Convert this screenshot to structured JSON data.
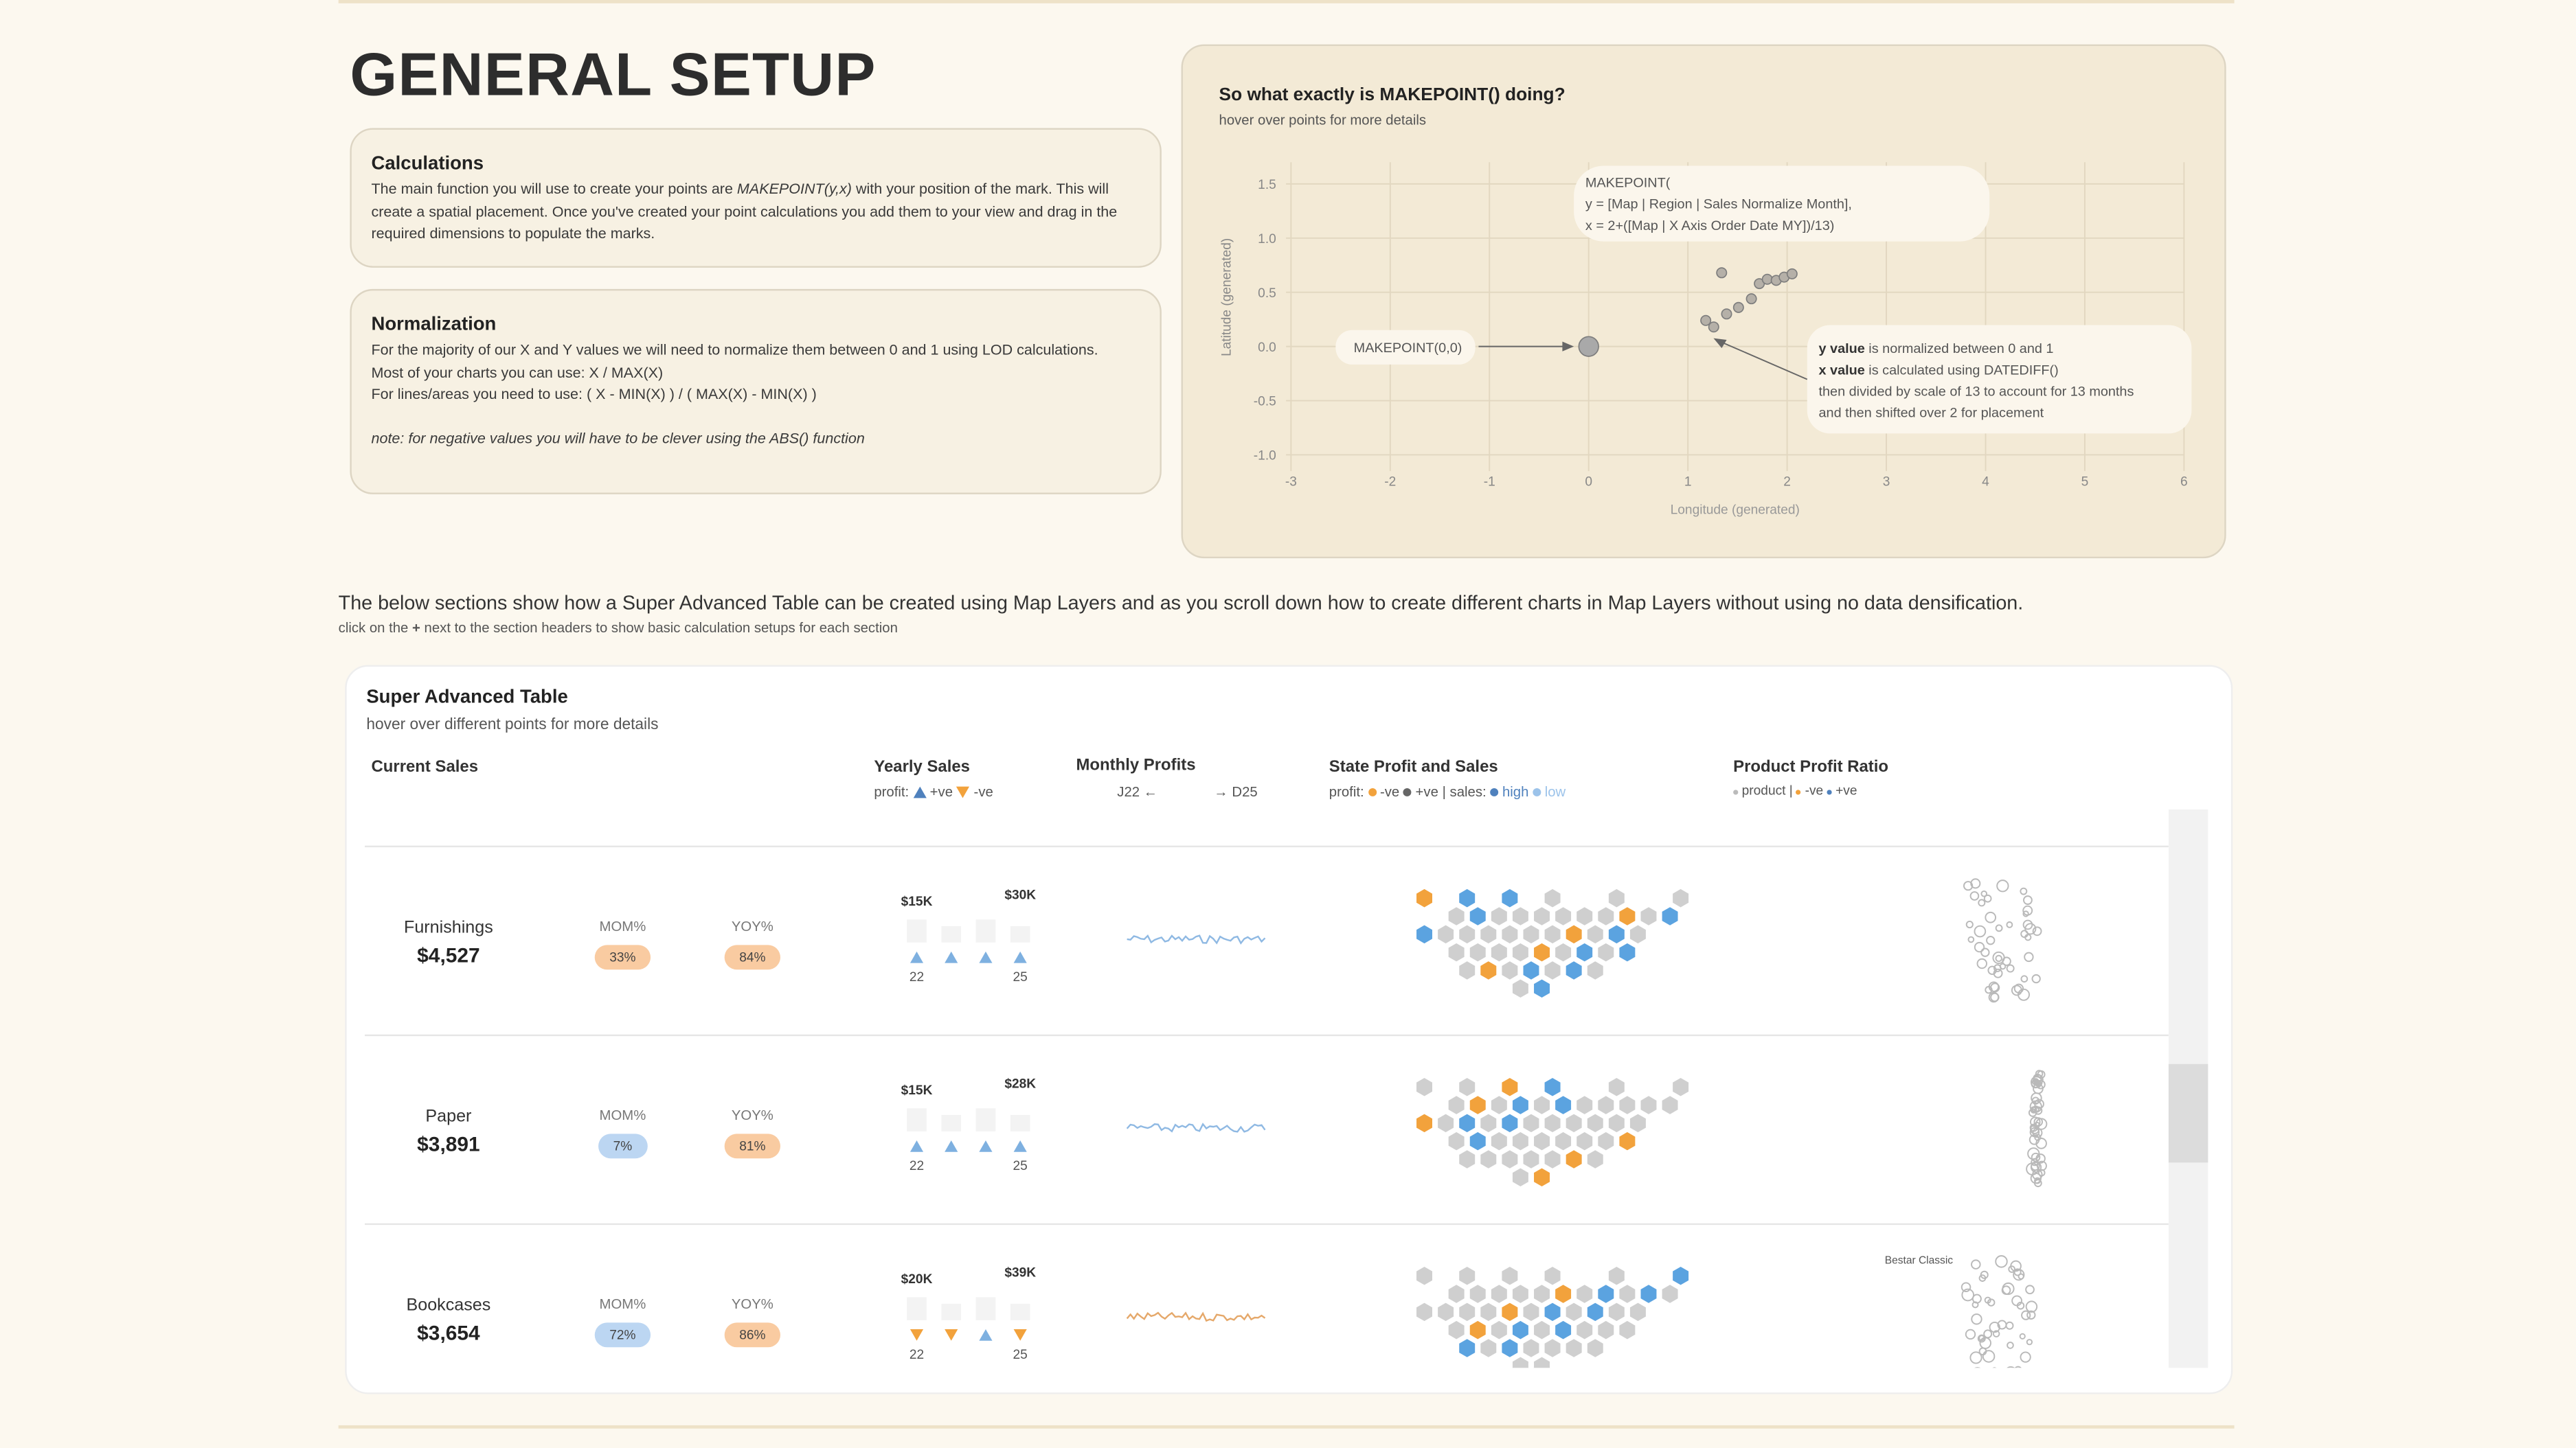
{
  "header": {
    "title": "GENERAL SETUP"
  },
  "calculations": {
    "title": "Calculations",
    "text_before": "The main function you will use to create your points are ",
    "code": "MAKEPOINT(y,x)",
    "text_after": " with your position of the mark. This will create a spatial placement. Once you've created your point calculations you add them to your view and drag in the required dimensions to populate the marks."
  },
  "normalization": {
    "title": "Normalization",
    "lines": [
      "For the majority of our X and Y values we will need to normalize them between 0 and 1 using LOD calculations.",
      "Most of your charts you can use: X / MAX(X)",
      "For lines/areas you need to use: ( X - MIN(X) ) / ( MAX(X) - MIN(X) )"
    ],
    "note": "note: for negative values you will have to be clever using the ABS() function"
  },
  "chart_data": {
    "type": "scatter",
    "title": "So what exactly is MAKEPOINT() doing?",
    "subtitle": "hover over points for more details",
    "x_label": "Longitude (generated)",
    "y_label": "Latitude (generated)",
    "xlim": [
      -3.05,
      6.0
    ],
    "ylim": [
      -1.15,
      1.7
    ],
    "xticks": [
      -3,
      -2,
      -1,
      0,
      1,
      2,
      3,
      4,
      5,
      6
    ],
    "yticks": [
      {
        "value": -1,
        "label": "-1.0"
      },
      -0.5,
      {
        "value": 0,
        "label": "0.0"
      },
      0.5,
      {
        "value": 1,
        "label": "1.0"
      },
      1.5
    ],
    "grid": true,
    "series": [
      {
        "color": "#a9a9a9",
        "x": [
          0
        ],
        "values": [
          0
        ]
      },
      {
        "color": "#b5b0a8",
        "x": [
          1.34,
          1.18,
          1.26,
          1.39,
          1.51,
          1.64,
          1.72,
          1.8,
          1.89,
          1.97,
          2.05
        ],
        "values": [
          0.68,
          0.24,
          0.18,
          0.3,
          0.36,
          0.44,
          0.58,
          0.62,
          0.61,
          0.64,
          0.67
        ]
      }
    ],
    "tooltip_lines": [
      "MAKEPOINT(",
      "y = [Map | Region | Sales Normalize Month],",
      "x = 2+([Map | X Axis Order Date MY])/13)"
    ],
    "origin_label": "MAKEPOINT(0,0)",
    "explanation": [
      {
        "bold": "y value",
        "text": " is normalized between 0 and 1"
      },
      {
        "bold": "x value",
        "text": " is calculated using DATEDIFF()"
      },
      {
        "text": "then divided by scale of 13 to account for 13 months"
      },
      {
        "text": "and then shifted over 2 for placement"
      }
    ]
  },
  "intro": {
    "text": "The below sections show how a Super Advanced Table can be created using Map Layers and as you scroll down how to create different charts in Map Layers without using no data densification.",
    "hint_before": "click on the ",
    "hint_plus": "+",
    "hint_after": " next to the section headers to show basic calculation setups for each section"
  },
  "table": {
    "title": "Super Advanced Table",
    "subtitle": "hover over different points for more details",
    "columns": {
      "current_sales": "Current Sales",
      "yearly_sales": "Yearly Sales",
      "profit": "profit:",
      "pos": "+ve",
      "neg": "-ve",
      "monthly": "Monthly Profits",
      "start": "J22",
      "end": "D25",
      "state": "State Profit and Sales",
      "state_profit": "profit:",
      "state_neg": "-ve",
      "state_pos": "+ve",
      "sales": "| sales:",
      "high": "high",
      "low": "low",
      "product": "Product Profit Ratio",
      "product_item": "product |",
      "product_neg": "-ve",
      "product_pos": "+ve"
    },
    "rows": [
      {
        "category": "Furnishings",
        "sales": "$4,527",
        "mom_label": "MOM%",
        "mom": "33%",
        "mom_color": "#f9cba1",
        "yoy_label": "YOY%",
        "yoy": "84%",
        "yoy_color": "#f9cba1",
        "yearly_low": "$15K",
        "yearly_high": "$30K",
        "trend": [
          "up",
          "up",
          "up",
          "up"
        ],
        "year_start": "22",
        "year_end": "25"
      },
      {
        "category": "Paper",
        "sales": "$3,891",
        "mom_label": "MOM%",
        "mom": "7%",
        "mom_color": "#bcd6f2",
        "yoy_label": "YOY%",
        "yoy": "81%",
        "yoy_color": "#f9cba1",
        "yearly_low": "$15K",
        "yearly_high": "$28K",
        "trend": [
          "up",
          "up",
          "up",
          "up"
        ],
        "year_start": "22",
        "year_end": "25"
      },
      {
        "category": "Bookcases",
        "sales": "$3,654",
        "mom_label": "MOM%",
        "mom": "72%",
        "mom_color": "#bcd6f2",
        "yoy_label": "YOY%",
        "yoy": "86%",
        "yoy_color": "#f9cba1",
        "yearly_low": "$20K",
        "yearly_high": "$39K",
        "trend": [
          "down",
          "down",
          "up",
          "down"
        ],
        "year_start": "22",
        "year_end": "25",
        "annotation": "Bestar Classic"
      }
    ]
  }
}
